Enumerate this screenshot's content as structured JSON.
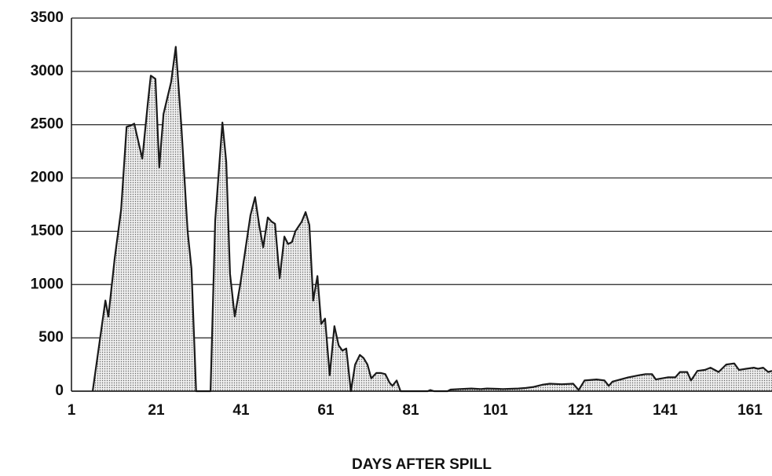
{
  "chart_data": {
    "type": "area",
    "xlabel": "DAYS AFTER SPILL",
    "x": [
      6,
      9,
      9.7,
      11.2,
      12.7,
      14,
      14.9,
      15.8,
      17.7,
      19,
      19.7,
      20.8,
      21.7,
      22.7,
      24.5,
      25.6,
      26.9,
      28.4,
      29.3,
      30.4,
      33.8,
      34.9,
      36.6,
      37.5,
      38.4,
      39.5,
      40.8,
      42.1,
      43.2,
      44.3,
      45.3,
      46.2,
      47.3,
      48.2,
      49,
      50.1,
      51.2,
      52.1,
      53,
      53.8,
      55.3,
      56.2,
      57.1,
      58,
      59,
      59.9,
      60.8,
      61.9,
      63,
      64,
      64.9,
      65.8,
      66.9,
      67.9,
      69,
      69.9,
      70.8,
      71.7,
      72.9,
      74,
      75,
      76,
      76.7,
      77.7,
      78.6,
      85,
      85.6,
      86.5,
      89.7,
      90.4,
      92.5,
      95.3,
      97.5,
      99,
      102.7,
      106.4,
      108.2,
      110,
      112,
      113.8,
      116.6,
      119.3,
      120.6,
      122,
      124.8,
      126.7,
      127.7,
      128.6,
      132.3,
      135,
      136.4,
      137.9,
      138.8,
      141.6,
      143.4,
      144.5,
      146.2,
      147.1,
      148.6,
      150.4,
      151.7,
      153.6,
      155.4,
      157.3,
      158.4,
      160.1,
      161.9,
      162.9,
      164.1,
      165.3,
      166.2
    ],
    "values": [
      0,
      850,
      700,
      1250,
      1700,
      2480,
      2490,
      2510,
      2180,
      2700,
      2960,
      2930,
      2100,
      2600,
      2900,
      3230,
      2500,
      1500,
      1150,
      0,
      0,
      1600,
      2520,
      2150,
      1100,
      700,
      1000,
      1350,
      1650,
      1820,
      1550,
      1350,
      1630,
      1590,
      1570,
      1060,
      1450,
      1380,
      1400,
      1500,
      1590,
      1680,
      1560,
      850,
      1080,
      630,
      680,
      150,
      610,
      430,
      380,
      400,
      0,
      250,
      340,
      310,
      250,
      120,
      170,
      170,
      160,
      80,
      50,
      100,
      0,
      0,
      10,
      0,
      0,
      15,
      20,
      25,
      20,
      25,
      20,
      25,
      30,
      40,
      60,
      70,
      65,
      70,
      10,
      100,
      110,
      100,
      50,
      90,
      130,
      150,
      160,
      160,
      110,
      130,
      130,
      180,
      180,
      100,
      190,
      200,
      220,
      180,
      250,
      260,
      200,
      210,
      220,
      210,
      220,
      180,
      190
    ],
    "color": "#d8d8d8",
    "xlim": [
      1,
      166.2
    ],
    "xticks": [
      1,
      21,
      41,
      61,
      81,
      101,
      121,
      141,
      161
    ],
    "ylim": [
      0,
      3500
    ],
    "yticks": [
      0,
      500,
      1000,
      1500,
      2000,
      2500,
      3000,
      3500
    ],
    "grid": true
  }
}
